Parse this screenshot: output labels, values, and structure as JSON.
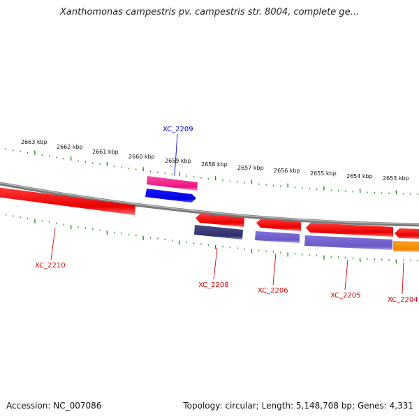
{
  "title": "Xanthomonas campestris pv. campestris str. 8004, complete ge...",
  "footer": {
    "accession": "Accession: NC_007086",
    "summary": "Topology: circular; Length: 5,148,708 bp; Genes: 4,331"
  },
  "colors": {
    "backbone": "#8a8a8a",
    "tick": "#2a8a2a",
    "label_red": "#d40000",
    "label_blue": "#0000cc"
  },
  "ticks": [
    "2663 kbp",
    "2662 kbp",
    "2661 kbp",
    "2660 kbp",
    "2659 kbp",
    "2658 kbp",
    "2657 kbp",
    "2656 kbp",
    "2655 kbp",
    "2654 kbp",
    "2653 kbp"
  ],
  "features": [
    {
      "name": "XC_2209",
      "track": "outer-1",
      "color": "#f0208a"
    },
    {
      "name": "XC_2209",
      "track": "outer-2",
      "color": "#0000ee"
    },
    {
      "name": "XC_2210",
      "track": "inner-1",
      "color": "#ee0000"
    },
    {
      "name": "XC_2208",
      "track": "inner-1",
      "color": "#ee0000"
    },
    {
      "name": "XC_2208",
      "track": "inner-2",
      "color": "#3b3b7a"
    },
    {
      "name": "XC_2206",
      "track": "inner-1",
      "color": "#ee0000"
    },
    {
      "name": "XC_2206",
      "track": "inner-2",
      "color": "#7060cc"
    },
    {
      "name": "XC_2205",
      "track": "inner-1",
      "color": "#ee0000"
    },
    {
      "name": "XC_2205",
      "track": "inner-2",
      "color": "#7060cc"
    },
    {
      "name": "XC_2204",
      "track": "inner-1",
      "color": "#ee0000"
    },
    {
      "name": "XC_2204",
      "track": "inner-2",
      "color": "#ff8c00"
    }
  ],
  "labels": [
    {
      "text": "XC_2209",
      "color": "blue"
    },
    {
      "text": "XC_2210",
      "color": "red"
    },
    {
      "text": "XC_2208",
      "color": "red"
    },
    {
      "text": "XC_2206",
      "color": "red"
    },
    {
      "text": "XC_2205",
      "color": "red"
    },
    {
      "text": "XC_2204",
      "color": "red"
    }
  ]
}
